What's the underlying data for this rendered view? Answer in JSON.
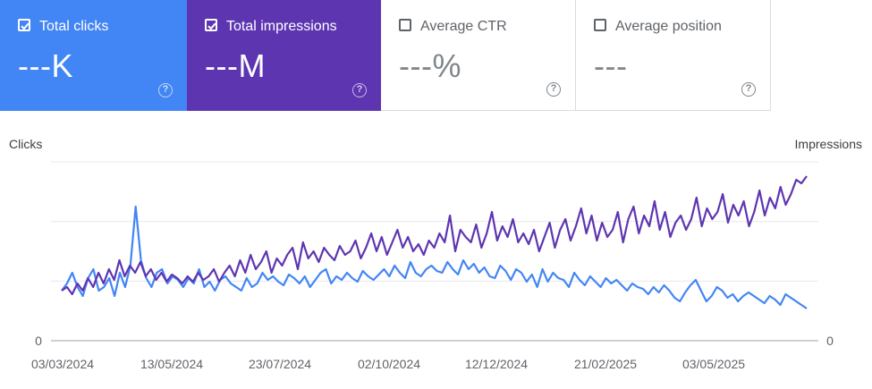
{
  "cards": [
    {
      "label": "Total clicks",
      "value": "---K",
      "checked": true,
      "color": "#4285f4"
    },
    {
      "label": "Total impressions",
      "value": "---M",
      "checked": true,
      "color": "#5e35b1"
    },
    {
      "label": "Average CTR",
      "value": "---%",
      "checked": false
    },
    {
      "label": "Average position",
      "value": "---",
      "checked": false
    }
  ],
  "help_glyph": "?",
  "chart_data": {
    "type": "line",
    "ylabel_left": "Clicks",
    "ylabel_right": "Impressions",
    "x_tick_labels": [
      "03/03/2024",
      "13/05/2024",
      "23/07/2024",
      "02/10/2024",
      "12/12/2024",
      "21/02/2025",
      "03/05/2025"
    ],
    "y_tick_left": [
      "0"
    ],
    "y_tick_right": [
      "0"
    ],
    "ylim": [
      0,
      100
    ],
    "grid": true,
    "series": [
      {
        "name": "Clicks",
        "color": "#4285f4",
        "values": [
          28,
          32,
          38,
          30,
          25,
          35,
          40,
          28,
          30,
          35,
          25,
          38,
          30,
          42,
          75,
          45,
          35,
          30,
          38,
          40,
          32,
          36,
          34,
          30,
          35,
          32,
          40,
          30,
          33,
          28,
          34,
          36,
          32,
          30,
          28,
          35,
          30,
          32,
          38,
          34,
          36,
          33,
          31,
          37,
          35,
          32,
          36,
          30,
          34,
          38,
          40,
          32,
          36,
          34,
          38,
          35,
          33,
          39,
          36,
          34,
          37,
          40,
          36,
          42,
          38,
          35,
          44,
          38,
          36,
          40,
          42,
          39,
          38,
          44,
          40,
          37,
          45,
          40,
          43,
          38,
          41,
          36,
          35,
          42,
          39,
          34,
          40,
          38,
          33,
          37,
          30,
          40,
          33,
          38,
          35,
          34,
          30,
          38,
          34,
          31,
          36,
          33,
          30,
          35,
          32,
          34,
          31,
          28,
          32,
          30,
          29,
          26,
          30,
          27,
          31,
          28,
          24,
          22,
          27,
          31,
          34,
          28,
          22,
          25,
          30,
          28,
          24,
          26,
          22,
          25,
          27,
          25,
          23,
          21,
          25,
          23,
          20,
          26,
          24,
          22,
          20,
          18
        ]
      },
      {
        "name": "Impressions",
        "color": "#5e35b1",
        "values": [
          28,
          30,
          26,
          32,
          28,
          35,
          30,
          38,
          32,
          40,
          34,
          45,
          36,
          42,
          38,
          44,
          36,
          40,
          34,
          38,
          33,
          37,
          35,
          32,
          36,
          33,
          38,
          34,
          36,
          40,
          33,
          38,
          42,
          36,
          45,
          38,
          48,
          40,
          44,
          50,
          38,
          46,
          42,
          48,
          52,
          40,
          55,
          46,
          50,
          44,
          52,
          48,
          45,
          53,
          48,
          50,
          56,
          46,
          52,
          60,
          50,
          58,
          48,
          55,
          62,
          52,
          58,
          50,
          54,
          48,
          56,
          52,
          60,
          55,
          70,
          50,
          62,
          58,
          55,
          65,
          52,
          60,
          72,
          56,
          64,
          58,
          68,
          55,
          60,
          54,
          62,
          50,
          58,
          66,
          52,
          62,
          68,
          56,
          64,
          74,
          60,
          70,
          56,
          66,
          58,
          62,
          72,
          55,
          68,
          75,
          60,
          70,
          64,
          78,
          62,
          72,
          58,
          66,
          70,
          62,
          68,
          80,
          64,
          74,
          68,
          72,
          82,
          66,
          76,
          70,
          78,
          64,
          72,
          84,
          70,
          80,
          74,
          86,
          76,
          82,
          90,
          88,
          92
        ]
      }
    ]
  }
}
